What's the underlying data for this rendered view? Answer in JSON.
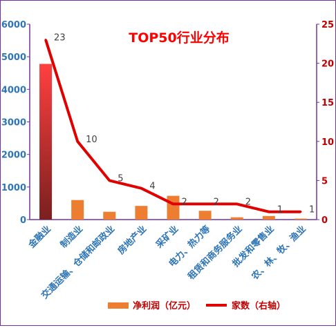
{
  "chart_data": {
    "type": "bar",
    "title": "TOP50行业分布",
    "categories": [
      "金融业",
      "制造业",
      "交通运输、仓储和邮政业",
      "房地产业",
      "采矿业",
      "电力、热力等",
      "租赁和商务服务业",
      "批发和零售业",
      "农、林、牧、渔业"
    ],
    "series": [
      {
        "name": "净利润（亿元）",
        "chart": "bar",
        "axis": "left",
        "color": "#ed7d31",
        "values": [
          4780,
          600,
          240,
          420,
          730,
          270,
          70,
          110,
          30
        ]
      },
      {
        "name": "家数（右轴）",
        "chart": "line",
        "axis": "right",
        "color": "#e00000",
        "values": [
          23,
          10,
          5,
          4,
          2,
          2,
          2,
          1,
          1
        ]
      }
    ],
    "left_axis": {
      "min": 0,
      "max": 6000,
      "ticks": [
        "0",
        "1000",
        "2000",
        "3000",
        "4000",
        "5000",
        "6000"
      ]
    },
    "right_axis": {
      "min": 0,
      "max": 25,
      "ticks": [
        "0",
        "5",
        "10",
        "15",
        "20",
        "25"
      ]
    },
    "line_labels": [
      "23",
      "10",
      "5",
      "4",
      "2",
      "2",
      "2",
      "1",
      "1"
    ],
    "legend_position": "bottom",
    "grid": false,
    "colors": {
      "title": "#ff0000",
      "left_axis": "#2e75b6",
      "right_axis": "#c00000",
      "category_labels": "#2e75b6",
      "first_bar_top": "#ff4040",
      "first_bar_bottom": "#7b1f1f",
      "frame": "#7030a0"
    }
  }
}
